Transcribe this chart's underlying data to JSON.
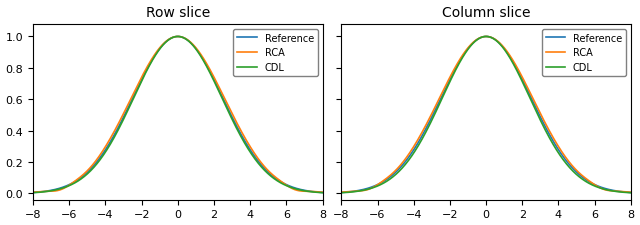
{
  "title_left": "Row slice",
  "title_right": "Column slice",
  "xlim": [
    -8,
    8
  ],
  "xticks": [
    -8,
    -6,
    -4,
    -2,
    0,
    2,
    4,
    6,
    8
  ],
  "yticks": [
    0.0,
    0.2,
    0.4,
    0.6,
    0.8,
    1.0
  ],
  "legend_labels": [
    "Reference",
    "RCA",
    "CDL"
  ],
  "colors": [
    "#1f77b4",
    "#ff7f0e",
    "#2ca02c"
  ],
  "ref_sigma": 2.5,
  "rca_sigma_row": 2.58,
  "cdl_sigma_row": 2.45,
  "rca_sigma_col": 2.58,
  "cdl_sigma_col": 2.43,
  "linewidth": 1.2,
  "figsize": [
    6.4,
    2.26
  ],
  "dpi": 100
}
